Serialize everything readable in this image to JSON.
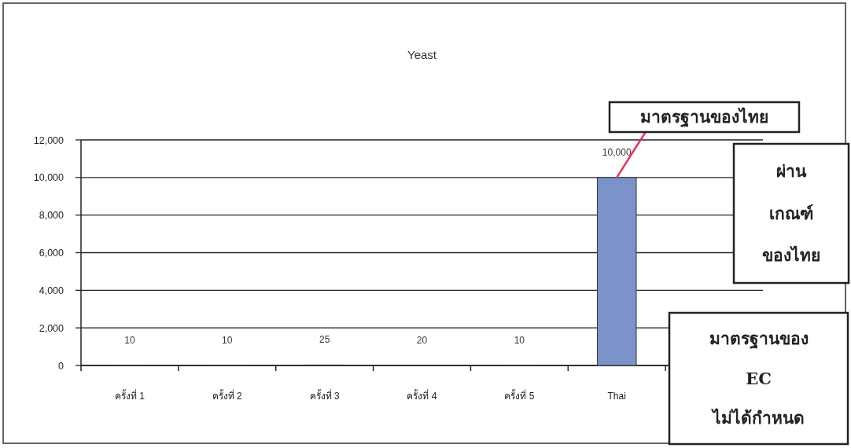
{
  "chart_data": {
    "type": "bar",
    "title": "Yeast",
    "categories": [
      "ครั้งที่ 1",
      "ครั้งที่ 2",
      "ครั้งที่ 3",
      "ครั้งที่ 4",
      "ครั้งที่ 5",
      "Thai",
      null
    ],
    "values": [
      10,
      10,
      25,
      20,
      10,
      10000,
      null
    ],
    "value_labels": [
      "10",
      "10",
      "25",
      "20",
      "10",
      "10,000",
      null
    ],
    "color": "#7b93c9",
    "ylim": [
      0,
      12000
    ],
    "yticks": [
      {
        "value": 0,
        "label": "0"
      },
      {
        "value": 2000,
        "label": "2,000"
      },
      {
        "value": 4000,
        "label": "4,000"
      },
      {
        "value": 6000,
        "label": "6,000"
      },
      {
        "value": 8000,
        "label": "8,000"
      },
      {
        "value": 10000,
        "label": "10,000"
      },
      {
        "value": 12000,
        "label": "12,000"
      }
    ],
    "grid": "y",
    "annotations": [
      {
        "text": "มาตรฐานของไทย",
        "x": "Thai",
        "y": 10000
      },
      "ผ่าน\nเกณฑ์\nของไทย",
      "มาตรฐานของ\nEC\nไม่ได้กำหนด"
    ]
  }
}
